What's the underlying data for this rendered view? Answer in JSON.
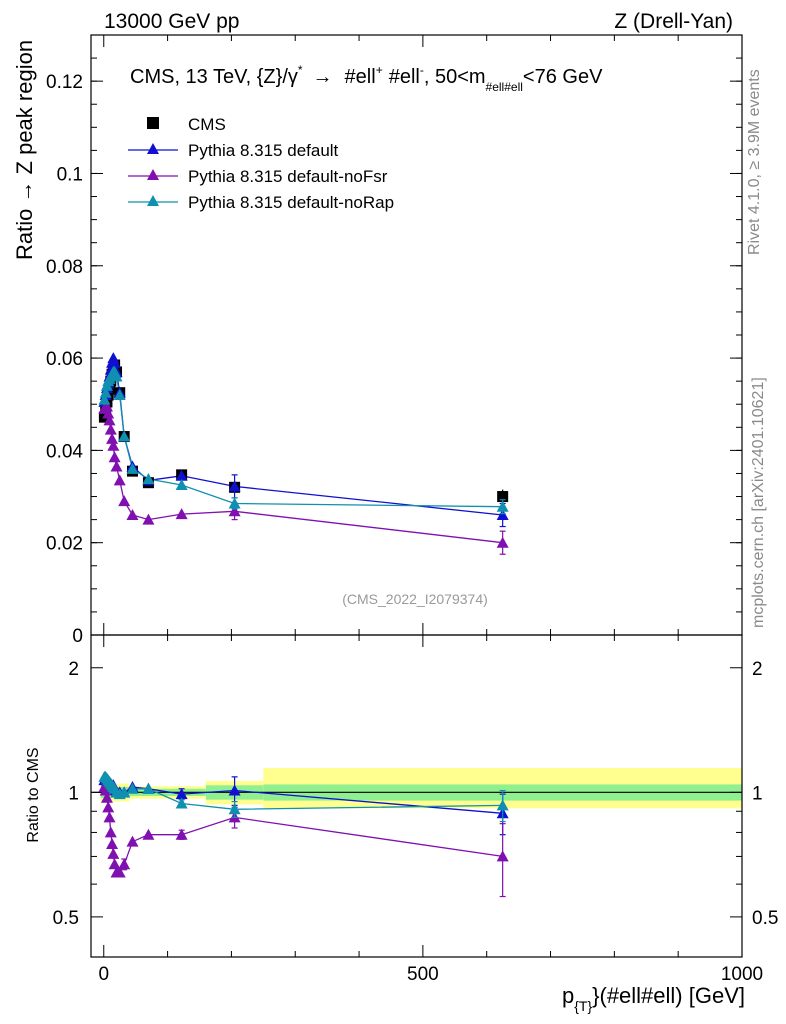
{
  "header": {
    "left": "13000 GeV pp",
    "right": "Z (Drell-Yan)"
  },
  "side": {
    "rivet": "Rivet 4.1.0, ≥ 3.9M events",
    "mcplots": "mcplots.cern.ch [arXiv:2401.10621]"
  },
  "chart_data": {
    "type": "scatter",
    "title": "CMS, 13 TeV, {Z}/γ* → #ell⁺ #ell⁻, 50<m_#ell#ell<76 GeV",
    "title_parts": {
      "pre": "CMS, 13 TeV, {Z}/γ",
      "star": "*",
      "arrow": "→",
      "ell1": "#ell",
      "plus": "+",
      "ell2": "#ell",
      "minus": "-",
      "mpre": ",  50<m",
      "msub": "#ell#ell",
      "mpost": "<76 GeV"
    },
    "analysis_tag": "(CMS_2022_I2079374)",
    "ylabel": "Ratio → Z peak region",
    "ratio_ylabel": "Ratio to CMS",
    "xlabel": {
      "p": "p",
      "sub": "{T}",
      "rest": "}(#ell#ell) [GeV]"
    },
    "xlim": [
      -20,
      1000
    ],
    "ylim": [
      0,
      0.13
    ],
    "ratio_ylim": [
      0.4,
      2.4
    ],
    "x_ticks": [
      0,
      500,
      1000
    ],
    "x_tick_labels": [
      "0",
      "500",
      "1000"
    ],
    "y_ticks": [
      0,
      0.02,
      0.04,
      0.06,
      0.08,
      0.1,
      0.12
    ],
    "y_tick_labels": [
      "0",
      "0.02",
      "0.04",
      "0.06",
      "0.08",
      "0.1",
      "0.12"
    ],
    "ratio_ticks": [
      0.5,
      1,
      2
    ],
    "ratio_tick_labels": [
      "0.5",
      "1",
      "2"
    ],
    "x": [
      1,
      3,
      5,
      7,
      9,
      11,
      13,
      15,
      17,
      20,
      25,
      32,
      45,
      70,
      122,
      205,
      625
    ],
    "series": [
      {
        "name": "CMS",
        "color": "#000000",
        "marker": "square",
        "values": [
          0.0472,
          0.0487,
          0.0505,
          0.052,
          0.0533,
          0.055,
          0.0565,
          0.0575,
          0.0585,
          0.057,
          0.0525,
          0.043,
          0.0355,
          0.033,
          0.0347,
          0.032,
          0.03
        ],
        "errors": [
          0.0008,
          0.0008,
          0.0008,
          0.0008,
          0.0008,
          0.0008,
          0.0008,
          0.0008,
          0.0008,
          0.0008,
          0.0008,
          0.0008,
          0.0006,
          0.0006,
          0.0008,
          0.0012,
          0.0015
        ],
        "ratio": [
          1,
          1,
          1,
          1,
          1,
          1,
          1,
          1,
          1,
          1,
          1,
          1,
          1,
          1,
          1,
          1,
          1
        ]
      },
      {
        "name": "Pythia 8.315 default",
        "color": "#1010d0",
        "marker": "triangle",
        "values": [
          0.0505,
          0.052,
          0.0535,
          0.0545,
          0.056,
          0.0575,
          0.059,
          0.06,
          0.059,
          0.057,
          0.0525,
          0.043,
          0.0365,
          0.0335,
          0.0345,
          0.0322,
          0.026
        ],
        "errors": [
          0.0004,
          0.0004,
          0.0004,
          0.0004,
          0.0004,
          0.0004,
          0.0004,
          0.0004,
          0.0004,
          0.0004,
          0.0004,
          0.0004,
          0.0004,
          0.0004,
          0.0005,
          0.0025,
          0.0025
        ],
        "ratio": [
          1.07,
          1.07,
          1.06,
          1.05,
          1.05,
          1.05,
          1.04,
          1.04,
          1.01,
          1.0,
          1.0,
          1.0,
          1.03,
          1.02,
          0.99,
          1.01,
          0.89
        ],
        "ratio_errors": [
          0.01,
          0.01,
          0.01,
          0.01,
          0.01,
          0.01,
          0.01,
          0.01,
          0.01,
          0.01,
          0.01,
          0.01,
          0.01,
          0.01,
          0.03,
          0.08,
          0.1
        ]
      },
      {
        "name": "Pythia 8.315 default-noFsr",
        "color": "#8010b0",
        "marker": "triangle",
        "values": [
          0.049,
          0.0495,
          0.0495,
          0.048,
          0.0465,
          0.0445,
          0.0425,
          0.041,
          0.0385,
          0.0365,
          0.0335,
          0.029,
          0.026,
          0.025,
          0.0262,
          0.0268,
          0.02
        ],
        "errors": [
          0.0004,
          0.0004,
          0.0004,
          0.0004,
          0.0004,
          0.0004,
          0.0004,
          0.0004,
          0.0004,
          0.0004,
          0.0004,
          0.0004,
          0.0004,
          0.0004,
          0.0005,
          0.0018,
          0.0025
        ],
        "ratio": [
          1.03,
          1.01,
          0.97,
          0.92,
          0.87,
          0.8,
          0.75,
          0.71,
          0.67,
          0.64,
          0.64,
          0.67,
          0.76,
          0.79,
          0.79,
          0.87,
          0.7
        ],
        "ratio_errors": [
          0.01,
          0.01,
          0.01,
          0.01,
          0.01,
          0.01,
          0.01,
          0.01,
          0.01,
          0.01,
          0.01,
          0.02,
          0.01,
          0.01,
          0.02,
          0.05,
          0.14
        ]
      },
      {
        "name": "Pythia 8.315 default-noRap",
        "color": "#1090b0",
        "marker": "triangle",
        "values": [
          0.051,
          0.0525,
          0.054,
          0.055,
          0.0555,
          0.056,
          0.0565,
          0.057,
          0.057,
          0.056,
          0.052,
          0.043,
          0.036,
          0.0338,
          0.0325,
          0.0285,
          0.0278
        ],
        "errors": [
          0.0004,
          0.0004,
          0.0004,
          0.0004,
          0.0004,
          0.0004,
          0.0004,
          0.0004,
          0.0004,
          0.0004,
          0.0004,
          0.0004,
          0.0004,
          0.0004,
          0.0005,
          0.0012,
          0.0015
        ],
        "ratio": [
          1.09,
          1.09,
          1.08,
          1.07,
          1.06,
          1.05,
          1.04,
          1.03,
          1.02,
          1.0,
          0.99,
          1.0,
          1.02,
          1.02,
          0.94,
          0.91,
          0.93
        ],
        "ratio_errors": [
          0.01,
          0.01,
          0.01,
          0.01,
          0.01,
          0.01,
          0.01,
          0.01,
          0.01,
          0.01,
          0.01,
          0.01,
          0.01,
          0.01,
          0.02,
          0.04,
          0.08
        ]
      }
    ],
    "uncertainty_bands": [
      {
        "x0": -5,
        "x1": 40,
        "lo1": 0.97,
        "hi1": 1.03,
        "lo2": 0.95,
        "hi2": 1.05
      },
      {
        "x0": 40,
        "x1": 160,
        "lo1": 0.98,
        "hi1": 1.02,
        "lo2": 0.965,
        "hi2": 1.035
      },
      {
        "x0": 160,
        "x1": 250,
        "lo1": 0.96,
        "hi1": 1.04,
        "lo2": 0.935,
        "hi2": 1.065
      },
      {
        "x0": 250,
        "x1": 1000,
        "lo1": 0.955,
        "hi1": 1.045,
        "lo2": 0.915,
        "hi2": 1.145
      }
    ],
    "band_colors": {
      "inner": "#90f090",
      "outer": "#ffff90"
    },
    "legend_position": "top-left"
  }
}
